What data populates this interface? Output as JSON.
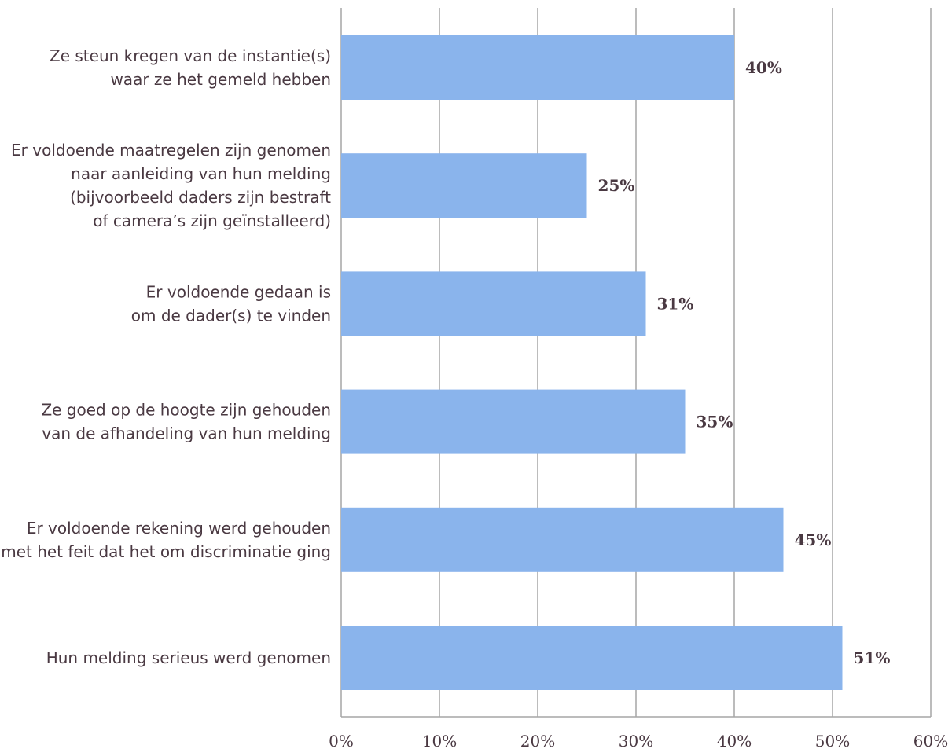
{
  "chart_data": {
    "type": "bar",
    "orientation": "horizontal",
    "categories": [
      [
        "Ze steun kregen van de instantie(s)",
        "waar ze het gemeld hebben"
      ],
      [
        "Er voldoende maatregelen zijn genomen",
        "naar aanleiding van hun melding",
        "(bijvoorbeeld daders zijn bestraft",
        "of camera’s zijn geïnstalleerd)"
      ],
      [
        "Er voldoende gedaan is",
        "om de dader(s)  te vinden"
      ],
      [
        "Ze goed op de hoogte zijn gehouden",
        "van de afhandeling van hun melding"
      ],
      [
        "Er voldoende rekening werd gehouden",
        "met het feit dat het om discriminatie ging"
      ],
      [
        "Hun melding serieus werd genomen"
      ]
    ],
    "values": [
      40,
      25,
      31,
      35,
      45,
      51
    ],
    "value_labels": [
      "40%",
      "25%",
      "31%",
      "35%",
      "45%",
      "51%"
    ],
    "x_ticks": [
      "0%",
      "10%",
      "20%",
      "30%",
      "40%",
      "50%",
      "60%"
    ],
    "xlim": [
      0,
      60
    ],
    "grid": true,
    "bar_color": "#8ab4ec",
    "text_color": "#4a3942",
    "grid_color": "#a6a6a6"
  }
}
